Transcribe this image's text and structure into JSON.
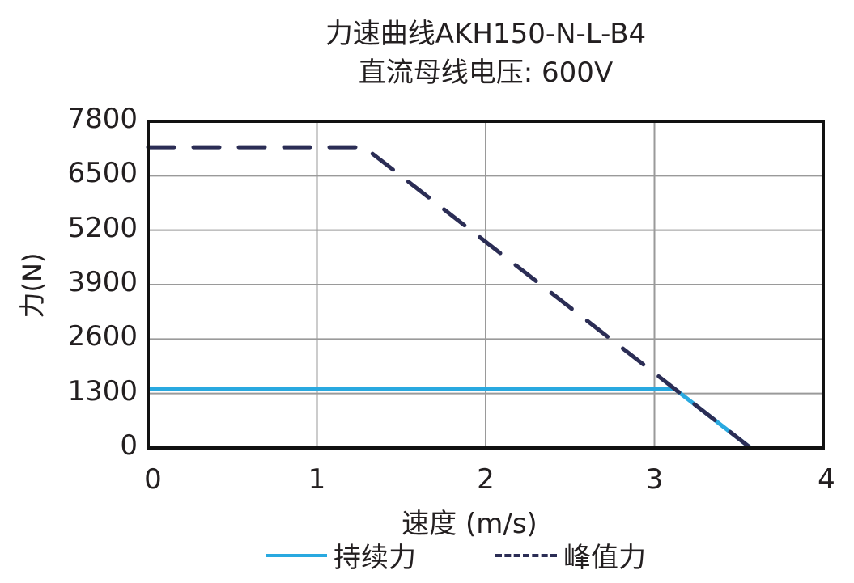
{
  "chart_data": {
    "type": "line",
    "title": "力速曲线AKH150-N-L-B4",
    "subtitle": "直流母线电压: 600V",
    "xlabel": "速度 (m/s)",
    "ylabel": "力(N)",
    "xlim": [
      0,
      4
    ],
    "ylim": [
      0,
      7800
    ],
    "xticks": [
      0,
      1,
      2,
      3,
      4
    ],
    "yticks": [
      0,
      1300,
      2600,
      3900,
      5200,
      6500,
      7800
    ],
    "grid": true,
    "legend_position": "bottom",
    "series": [
      {
        "name": "持续力",
        "style": "solid",
        "color": "#29a9e0",
        "x": [
          0,
          3.12,
          3.57
        ],
        "y": [
          1410,
          1410,
          0
        ]
      },
      {
        "name": "峰值力",
        "style": "dashed",
        "color": "#2b2d55",
        "x": [
          0,
          1.28,
          3.57
        ],
        "y": [
          7180,
          7180,
          0
        ]
      }
    ]
  },
  "labels": {
    "title": "力速曲线AKH150-N-L-B4",
    "subtitle": "直流母线电压: 600V",
    "xlabel": "速度 (m/s)",
    "ylabel": "力(N)",
    "yticks": [
      "7800",
      "6500",
      "5200",
      "3900",
      "2600",
      "1300",
      "0"
    ],
    "xticks": [
      "0",
      "1",
      "2",
      "3",
      "4"
    ],
    "legend": [
      "持续力",
      "峰值力"
    ]
  }
}
